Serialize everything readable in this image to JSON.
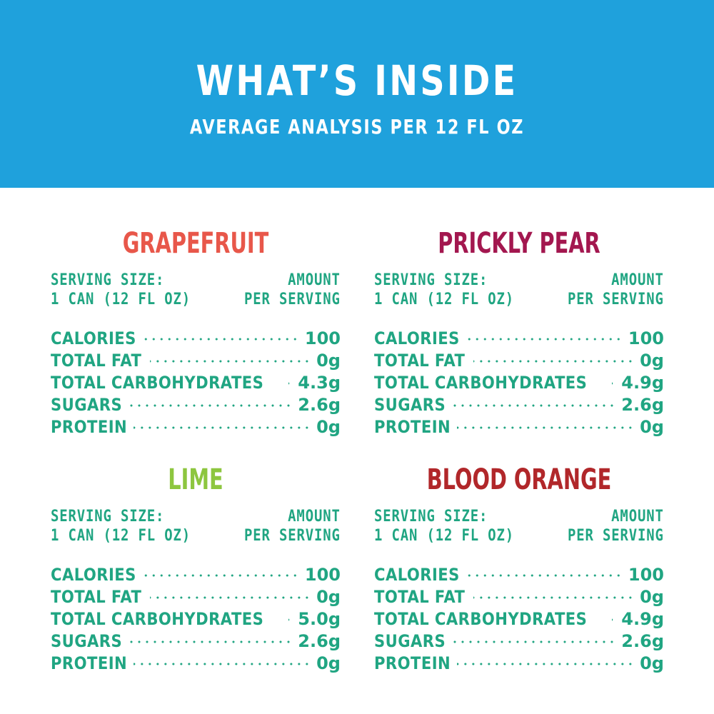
{
  "header": {
    "title": "WHAT’S INSIDE",
    "subtitle": "AVERAGE ANALYSIS PER 12 FL OZ",
    "background_color": "#1fa1dc"
  },
  "serving": {
    "size_label": "SERVING SIZE:",
    "size_value": "1 CAN (12 FL OZ)",
    "amount_label": "AMOUNT",
    "per_label": "PER SERVING"
  },
  "text_color": "#20a582",
  "flavors": [
    {
      "name": "GRAPEFRUIT",
      "color": "#e8574a",
      "nutrients": [
        {
          "label": "CALORIES",
          "value": "100"
        },
        {
          "label": "TOTAL FAT",
          "value": "0g"
        },
        {
          "label": "TOTAL CARBOHYDRATES",
          "value": "4.3g"
        },
        {
          "label": "SUGARS",
          "value": "2.6g"
        },
        {
          "label": "PROTEIN",
          "value": "0g"
        }
      ]
    },
    {
      "name": "PRICKLY PEAR",
      "color": "#a3174f",
      "nutrients": [
        {
          "label": "CALORIES",
          "value": "100"
        },
        {
          "label": "TOTAL FAT",
          "value": "0g"
        },
        {
          "label": "TOTAL CARBOHYDRATES",
          "value": "4.9g"
        },
        {
          "label": "SUGARS",
          "value": "2.6g"
        },
        {
          "label": "PROTEIN",
          "value": "0g"
        }
      ]
    },
    {
      "name": "LIME",
      "color": "#8dc63f",
      "nutrients": [
        {
          "label": "CALORIES",
          "value": "100"
        },
        {
          "label": "TOTAL FAT",
          "value": "0g"
        },
        {
          "label": "TOTAL CARBOHYDRATES",
          "value": "5.0g"
        },
        {
          "label": "SUGARS",
          "value": "2.6g"
        },
        {
          "label": "PROTEIN",
          "value": "0g"
        }
      ]
    },
    {
      "name": "BLOOD ORANGE",
      "color": "#b1272a",
      "nutrients": [
        {
          "label": "CALORIES",
          "value": "100"
        },
        {
          "label": "TOTAL FAT",
          "value": "0g"
        },
        {
          "label": "TOTAL CARBOHYDRATES",
          "value": "4.9g"
        },
        {
          "label": "SUGARS",
          "value": "2.6g"
        },
        {
          "label": "PROTEIN",
          "value": "0g"
        }
      ]
    }
  ]
}
